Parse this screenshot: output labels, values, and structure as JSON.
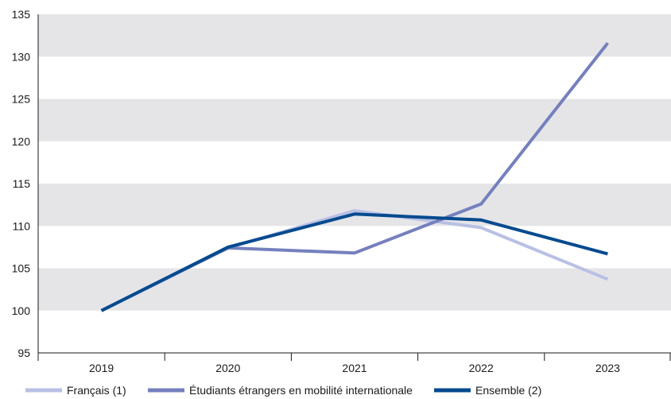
{
  "chart_data": {
    "type": "line",
    "title": "",
    "xlabel": "",
    "ylabel": "",
    "categories": [
      "2019",
      "2020",
      "2021",
      "2022",
      "2023"
    ],
    "ylim": [
      95,
      135
    ],
    "yticks": [
      95,
      100,
      105,
      110,
      115,
      120,
      125,
      130,
      135
    ],
    "grid": "alternating horizontal bands",
    "legend_position": "bottom",
    "series": [
      {
        "name": "Français (1)",
        "values": [
          100,
          107.4,
          111.8,
          109.8,
          103.7
        ],
        "color": "#b9c0e4"
      },
      {
        "name": "Étudiants étrangers en mobilité internationale",
        "values": [
          100,
          107.4,
          106.8,
          112.6,
          131.6
        ],
        "color": "#7580bd"
      },
      {
        "name": "Ensemble (2)",
        "values": [
          100,
          107.5,
          111.4,
          110.7,
          106.7
        ],
        "color": "#034a8f"
      }
    ]
  }
}
